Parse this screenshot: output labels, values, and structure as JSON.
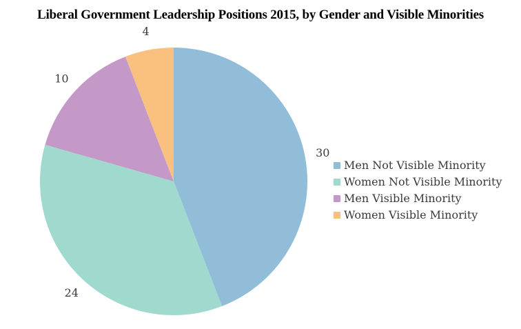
{
  "chart_data": {
    "type": "pie",
    "title": "Liberal Government Leadership Positions 2015, by Gender and Visible Minorities",
    "labels": [
      "Men Not Visible Minority",
      "Women Not Visible Minority",
      "Men Visible Minority",
      "Women Visible Minority"
    ],
    "values": [
      30,
      24,
      10,
      4
    ],
    "colors": [
      "#92bdd9",
      "#a0d9ce",
      "#c499c8",
      "#f9c080"
    ],
    "total": 68,
    "start_angle_deg": 0,
    "direction": "clockwise",
    "data_labels": "outside",
    "legend_position": "right",
    "text_color": "#3a3a3a",
    "background": "#ffffff"
  }
}
